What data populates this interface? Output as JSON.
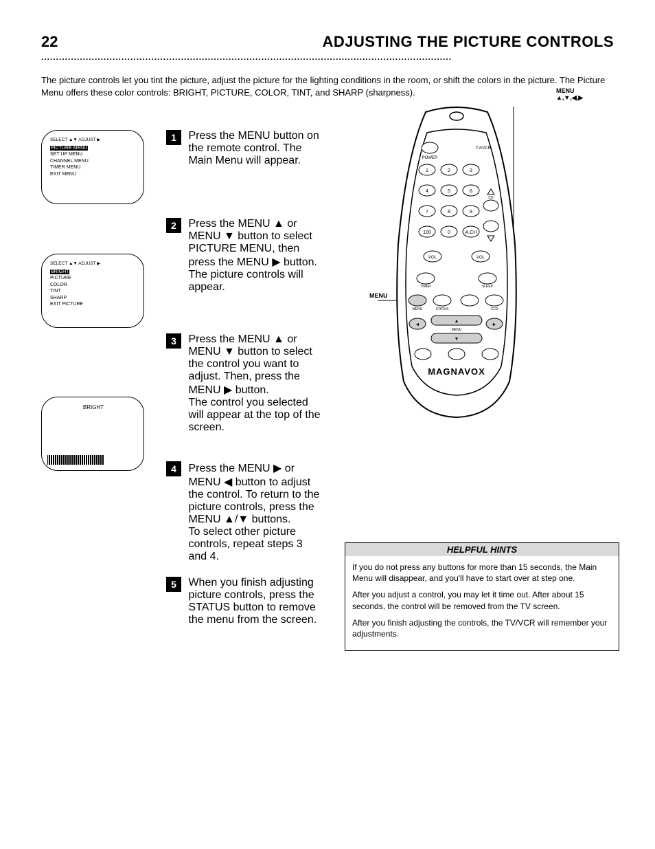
{
  "page": {
    "number": "22",
    "title": "ADJUSTING THE PICTURE CONTROLS",
    "intro": "The picture controls let you tint the picture, adjust the picture for the lighting conditions in the room, or shift the colors in the picture. The Picture Menu offers these color controls: BRIGHT, PICTURE, COLOR, TINT, and SHARP (sharpness)."
  },
  "screens": {
    "s1": {
      "select_line": "SELECT ▲▼ ADJUST ▶",
      "rows": [
        "SET UP MENU",
        "CHANNEL MENU",
        "TIMER MENU",
        "EXIT MENU"
      ],
      "highlight": "PICTURE MENU"
    },
    "s2": {
      "select_line": "SELECT ▲▼ ADJUST ▶",
      "rows": [
        "PICTURE",
        "COLOR",
        "TINT",
        "SHARP",
        "EXIT PICTURE"
      ],
      "highlight": "BRIGHT"
    },
    "s3": {
      "title": "BRIGHT"
    }
  },
  "steps": {
    "s1": "Press the MENU button on the remote control. The Main Menu will appear.",
    "s2a": "Press the MENU ▲ or MENU ▼ button to select PICTURE MENU, then press the MENU ▶ button.",
    "s2b": "The picture controls will appear.",
    "s3a": "Press the MENU ▲ or MENU ▼ button to select the control you want to adjust. Then, press the MENU ▶ button.",
    "s3b": "The control you selected will appear at the top of the screen.",
    "s4a": "Press the MENU ▶ or MENU ◀ button to adjust the control. To return to the picture controls, press the MENU ▲/▼ buttons.",
    "s4b": "To select other picture controls, repeat steps 3 and 4.",
    "s5": "When you finish adjusting picture controls, press the STATUS button to remove the menu from the screen."
  },
  "remote": {
    "label_right": "MENU ▲,▼,◀,▶",
    "label_left": "MENU",
    "brand": "MAGNAVOX",
    "button_rows": [
      [
        "1",
        "2",
        "3"
      ],
      [
        "4",
        "5",
        "6"
      ],
      [
        "7",
        "8",
        "9"
      ],
      [
        "100",
        "0",
        "A.CH"
      ]
    ],
    "vol_label": "VOL",
    "ch_label": "CH",
    "row_labels": [
      "TIMER",
      "",
      "SLEEP"
    ],
    "row2_labels": [
      "MENU",
      "STATUS",
      "",
      "CCD"
    ],
    "nav_labels": [
      "MENU"
    ]
  },
  "hints": {
    "title": "HELPFUL HINTS",
    "p1_a": "If you do not press any buttons for more than 15 seconds, the ",
    "p1_b": "Main Menu will disappear, and you'll have to start over at step one.",
    "p2": "After you adjust a control, you may let it time out. After about 15 seconds, the control will be removed from the TV screen.",
    "p3": "After you finish adjusting the controls, the TV/VCR will remember your adjustments."
  },
  "style": {
    "page_bg": "#ffffff",
    "text_color": "#000000",
    "highlight_bg": "#000000",
    "highlight_text": "#ffffff",
    "hint_header_bg": "#d9d9d9",
    "remote_highlight": "#cfcfcf",
    "title_fontsize": 22,
    "body_fontsize": 13,
    "hint_fontsize": 12,
    "screen_fontsize": 7
  }
}
